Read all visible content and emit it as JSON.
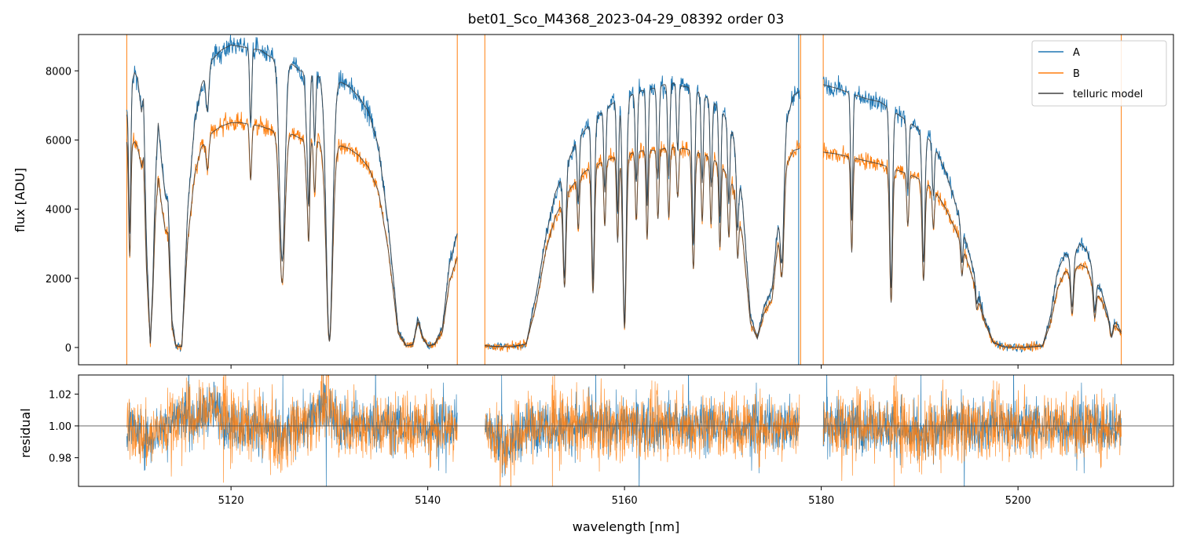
{
  "chart_data": [
    {
      "panel": "top",
      "type": "line",
      "title": "bet01_Sco_M4368_2023-04-29_08392  order 03",
      "xlabel": "",
      "ylabel": "flux [ADU]",
      "xlim": [
        5104.5,
        5215.8
      ],
      "ylim": [
        -500,
        9050
      ],
      "xticks": [
        5120,
        5140,
        5160,
        5180,
        5200
      ],
      "yticks": [
        0,
        2000,
        4000,
        6000,
        8000
      ],
      "ytick_labels": [
        "0",
        "2000",
        "4000",
        "6000",
        "8000"
      ],
      "legend": {
        "position": "top-right",
        "entries": [
          "A",
          "B",
          "telluric model"
        ]
      },
      "series": [
        {
          "name": "A",
          "color": "#1f77b4"
        },
        {
          "name": "B",
          "color": "#ff7f0e"
        },
        {
          "name": "telluric model",
          "color": "#404040"
        }
      ],
      "segments": [
        {
          "x": [
            5109.4,
            5109.8,
            5110.2,
            5110.5,
            5110.9,
            5111.1,
            5111.4,
            5111.8,
            5112.2,
            5112.6,
            5113.0,
            5113.3,
            5113.6,
            5114.0,
            5114.4,
            5115.0,
            5115.6,
            5116.3,
            5117.0,
            5118.0,
            5119.0,
            5120.0,
            5121.0,
            5122.0,
            5123.0,
            5124.0,
            5125.0,
            5126.0,
            5127.0,
            5128.0,
            5129.0,
            5130.0,
            5131.0,
            5132.0,
            5133.0,
            5134.0,
            5135.0,
            5136.0,
            5137.0,
            5137.8,
            5138.5,
            5139.0,
            5139.5,
            5140.0,
            5140.7,
            5141.5,
            5142.2,
            5143.0
          ],
          "A": [
            6800,
            7600,
            7950,
            7800,
            6800,
            7200,
            3000,
            150,
            4500,
            6500,
            5200,
            4400,
            4200,
            800,
            50,
            30,
            4000,
            6500,
            7600,
            8300,
            8600,
            8750,
            8700,
            8650,
            8600,
            8400,
            8300,
            8250,
            8000,
            8000,
            7850,
            7500,
            7700,
            7550,
            7250,
            6800,
            5800,
            3500,
            500,
            50,
            100,
            850,
            300,
            50,
            100,
            600,
            2400,
            3300
          ],
          "B": [
            6000,
            5800,
            5950,
            5800,
            5200,
            5500,
            2300,
            150,
            3600,
            4900,
            4000,
            3400,
            3300,
            600,
            40,
            30,
            3100,
            5000,
            5800,
            6200,
            6400,
            6500,
            6500,
            6450,
            6400,
            6300,
            6200,
            6200,
            6050,
            6000,
            5950,
            5700,
            5850,
            5750,
            5550,
            5200,
            4500,
            2800,
            400,
            40,
            80,
            750,
            250,
            40,
            80,
            450,
            1900,
            2600
          ]
        },
        {
          "x": [
            5145.8,
            5147.0,
            5148.5,
            5150.0,
            5151.0,
            5152.0,
            5153.0,
            5154.0,
            5155.0,
            5156.0,
            5157.0,
            5158.0,
            5159.0,
            5160.0,
            5161.0,
            5162.0,
            5163.0,
            5164.0,
            5165.0,
            5166.0,
            5167.0,
            5168.0,
            5169.0,
            5170.0,
            5171.0,
            5172.0,
            5172.8,
            5173.5,
            5174.2,
            5175.0,
            5175.8,
            5176.5,
            5177.2,
            5177.8
          ],
          "A": [
            50,
            30,
            20,
            100,
            1500,
            3200,
            4500,
            5200,
            5900,
            6300,
            6600,
            6900,
            7100,
            7200,
            7350,
            7450,
            7500,
            7600,
            7650,
            7550,
            7500,
            7300,
            7100,
            6800,
            6200,
            4200,
            900,
            300,
            1200,
            1700,
            4200,
            6600,
            7300,
            7400
          ],
          "B": [
            50,
            30,
            20,
            100,
            1200,
            2800,
            3800,
            4400,
            4800,
            5100,
            5250,
            5400,
            5500,
            5550,
            5650,
            5700,
            5700,
            5750,
            5800,
            5750,
            5700,
            5600,
            5450,
            5200,
            4700,
            3200,
            700,
            250,
            1000,
            1400,
            3600,
            5300,
            5700,
            5750
          ]
        },
        {
          "x": [
            5180.2,
            5181.5,
            5183.0,
            5184.5,
            5186.0,
            5187.5,
            5189.0,
            5190.5,
            5191.5,
            5192.5,
            5193.5,
            5194.5,
            5195.5,
            5196.5,
            5197.5,
            5198.5,
            5199.5,
            5200.5,
            5201.5,
            5202.5,
            5203.3,
            5204.0,
            5204.8,
            5205.5,
            5206.3,
            5207.0,
            5207.8,
            5208.5,
            5209.2,
            5210.0,
            5210.5
          ],
          "A": [
            7600,
            7500,
            7350,
            7200,
            7100,
            6800,
            6500,
            6200,
            5800,
            5200,
            4300,
            3300,
            2200,
            900,
            150,
            20,
            10,
            10,
            20,
            50,
            900,
            2200,
            2700,
            2600,
            3000,
            2800,
            2100,
            1600,
            900,
            700,
            450
          ],
          "B": [
            5650,
            5600,
            5500,
            5400,
            5300,
            5150,
            5000,
            4800,
            4550,
            4100,
            3500,
            2800,
            1900,
            800,
            130,
            20,
            10,
            10,
            20,
            40,
            700,
            1700,
            2200,
            2150,
            2400,
            2300,
            1700,
            1350,
            800,
            600,
            400
          ]
        }
      ],
      "absorption_lines": [
        {
          "x": 5109.7,
          "depth": 0.55,
          "width": 0.15
        },
        {
          "x": 5112.0,
          "depth": 0.35,
          "width": 0.25
        },
        {
          "x": 5117.6,
          "depth": 0.15,
          "width": 0.2
        },
        {
          "x": 5122.0,
          "depth": 0.25,
          "width": 0.15
        },
        {
          "x": 5125.2,
          "depth": 0.7,
          "width": 0.4
        },
        {
          "x": 5127.7,
          "depth": 0.2,
          "width": 0.2
        },
        {
          "x": 5127.9,
          "depth": 0.45,
          "width": 0.15
        },
        {
          "x": 5128.5,
          "depth": 0.25,
          "width": 0.15
        },
        {
          "x": 5130.0,
          "depth": 0.97,
          "width": 0.45
        },
        {
          "x": 5153.9,
          "depth": 0.6,
          "width": 0.2
        },
        {
          "x": 5155.3,
          "depth": 0.3,
          "width": 0.15
        },
        {
          "x": 5156.8,
          "depth": 0.7,
          "width": 0.2
        },
        {
          "x": 5158.0,
          "depth": 0.35,
          "width": 0.15
        },
        {
          "x": 5159.3,
          "depth": 0.45,
          "width": 0.15
        },
        {
          "x": 5160.0,
          "depth": 0.9,
          "width": 0.25
        },
        {
          "x": 5161.2,
          "depth": 0.35,
          "width": 0.15
        },
        {
          "x": 5162.3,
          "depth": 0.45,
          "width": 0.15
        },
        {
          "x": 5163.4,
          "depth": 0.35,
          "width": 0.15
        },
        {
          "x": 5164.5,
          "depth": 0.35,
          "width": 0.15
        },
        {
          "x": 5165.4,
          "depth": 0.25,
          "width": 0.15
        },
        {
          "x": 5167.0,
          "depth": 0.6,
          "width": 0.2
        },
        {
          "x": 5167.9,
          "depth": 0.35,
          "width": 0.15
        },
        {
          "x": 5168.8,
          "depth": 0.35,
          "width": 0.15
        },
        {
          "x": 5169.7,
          "depth": 0.45,
          "width": 0.15
        },
        {
          "x": 5170.6,
          "depth": 0.35,
          "width": 0.15
        },
        {
          "x": 5171.5,
          "depth": 0.35,
          "width": 0.15
        },
        {
          "x": 5176.0,
          "depth": 0.5,
          "width": 0.25
        },
        {
          "x": 5183.1,
          "depth": 0.5,
          "width": 0.15
        },
        {
          "x": 5187.1,
          "depth": 0.75,
          "width": 0.2
        },
        {
          "x": 5188.8,
          "depth": 0.3,
          "width": 0.15
        },
        {
          "x": 5190.4,
          "depth": 0.6,
          "width": 0.2
        },
        {
          "x": 5191.4,
          "depth": 0.25,
          "width": 0.15
        },
        {
          "x": 5194.3,
          "depth": 0.3,
          "width": 0.15
        },
        {
          "x": 5195.8,
          "depth": 0.3,
          "width": 0.15
        },
        {
          "x": 5205.5,
          "depth": 0.55,
          "width": 0.2
        },
        {
          "x": 5207.8,
          "depth": 0.5,
          "width": 0.2
        },
        {
          "x": 5209.5,
          "depth": 0.6,
          "width": 0.2
        }
      ],
      "spikes": [
        {
          "x": 5109.4,
          "color": "#ff7f0e"
        },
        {
          "x": 5143.0,
          "color": "#ff7f0e"
        },
        {
          "x": 5145.8,
          "color": "#ff7f0e"
        },
        {
          "x": 5177.7,
          "color": "#1f77b4"
        },
        {
          "x": 5177.9,
          "color": "#ff7f0e"
        },
        {
          "x": 5180.2,
          "color": "#ff7f0e"
        },
        {
          "x": 5210.5,
          "color": "#ff7f0e"
        }
      ]
    },
    {
      "panel": "bottom",
      "type": "line",
      "title": "",
      "xlabel": "wavelength [nm]",
      "ylabel": "residual",
      "xlim": [
        5104.5,
        5215.8
      ],
      "ylim": [
        0.962,
        1.032
      ],
      "xticks": [
        5120,
        5140,
        5160,
        5180,
        5200
      ],
      "xtick_labels": [
        "5120",
        "5140",
        "5160",
        "5180",
        "5200"
      ],
      "yticks": [
        0.98,
        1.0,
        1.02
      ],
      "ytick_labels": [
        "0.98",
        "1.00",
        "1.02"
      ],
      "reference_line": 1.0,
      "series": [
        {
          "name": "A",
          "color": "#1f77b4"
        },
        {
          "name": "B",
          "color": "#ff7f0e"
        }
      ],
      "ranges": [
        [
          5109.4,
          5143.0
        ],
        [
          5145.8,
          5177.8
        ],
        [
          5180.2,
          5210.5
        ]
      ],
      "noise_sigma": 0.009,
      "bumps": [
        {
          "x": 5111.5,
          "amp": -0.008,
          "width": 1.0
        },
        {
          "x": 5115.0,
          "amp": 0.006,
          "width": 1.2
        },
        {
          "x": 5118.0,
          "amp": 0.012,
          "width": 1.3
        },
        {
          "x": 5125.0,
          "amp": -0.01,
          "width": 0.8
        },
        {
          "x": 5129.5,
          "amp": 0.012,
          "width": 1.2
        },
        {
          "x": 5148.0,
          "amp": -0.012,
          "width": 1.5
        },
        {
          "x": 5190.0,
          "amp": -0.008,
          "width": 1.5
        }
      ]
    }
  ]
}
